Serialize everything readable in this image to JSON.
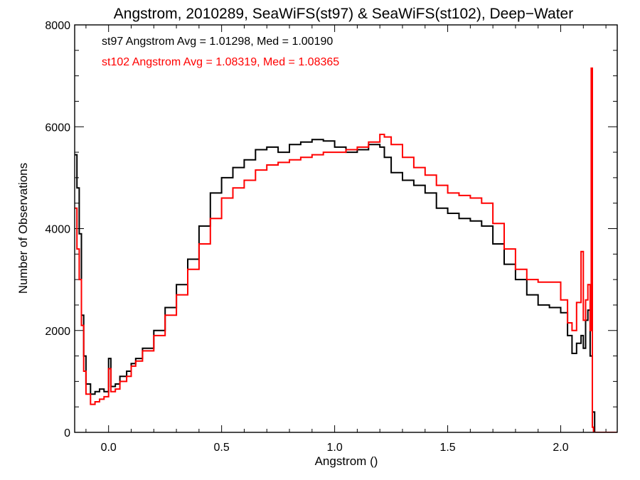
{
  "chart_data": {
    "type": "line",
    "title": "Angstrom, 2010289, SeaWiFS(st97) & SeaWiFS(st102), Deep−Water",
    "xlabel": "Angstrom ()",
    "ylabel": "Number of Observations",
    "xlim": [
      -0.15,
      2.25
    ],
    "ylim": [
      0,
      8000
    ],
    "x_ticks": [
      0.0,
      0.5,
      1.0,
      1.5,
      2.0
    ],
    "x_tick_labels": [
      "0.0",
      "0.5",
      "1.0",
      "1.5",
      "2.0"
    ],
    "y_ticks": [
      0,
      2000,
      4000,
      6000,
      8000
    ],
    "y_tick_labels": [
      "0",
      "2000",
      "4000",
      "6000",
      "8000"
    ],
    "grid": false,
    "legend": "none",
    "annotations": [
      {
        "text": "st97 Angstrom Avg = 1.01298, Med = 1.00190",
        "color": "#000000"
      },
      {
        "text": "st102 Angstrom Avg = 1.08319, Med = 1.08365",
        "color": "#ff0000"
      }
    ],
    "series": [
      {
        "color": "#000000",
        "x": [
          -0.15,
          -0.14,
          -0.13,
          -0.12,
          -0.11,
          -0.1,
          -0.08,
          -0.06,
          -0.04,
          -0.02,
          0.0,
          0.01,
          0.03,
          0.05,
          0.08,
          0.1,
          0.12,
          0.15,
          0.2,
          0.25,
          0.3,
          0.35,
          0.4,
          0.45,
          0.5,
          0.55,
          0.6,
          0.65,
          0.7,
          0.75,
          0.8,
          0.85,
          0.9,
          0.95,
          1.0,
          1.05,
          1.1,
          1.15,
          1.2,
          1.22,
          1.25,
          1.3,
          1.35,
          1.4,
          1.45,
          1.5,
          1.55,
          1.6,
          1.65,
          1.7,
          1.75,
          1.8,
          1.85,
          1.9,
          1.95,
          2.0,
          2.03,
          2.05,
          2.07,
          2.09,
          2.1,
          2.11,
          2.12,
          2.13,
          2.14,
          2.15
        ],
        "y": [
          5450,
          4800,
          3900,
          2300,
          1500,
          950,
          750,
          800,
          850,
          800,
          1450,
          900,
          950,
          1100,
          1200,
          1350,
          1450,
          1650,
          2000,
          2450,
          2900,
          3400,
          4050,
          4700,
          5000,
          5200,
          5350,
          5550,
          5600,
          5500,
          5650,
          5700,
          5750,
          5720,
          5600,
          5500,
          5550,
          5650,
          5600,
          5400,
          5100,
          4950,
          4850,
          4700,
          4400,
          4300,
          4200,
          4150,
          4050,
          3700,
          3300,
          3000,
          2700,
          2500,
          2450,
          2350,
          1900,
          1550,
          1750,
          1900,
          1650,
          2200,
          2400,
          1500,
          400,
          0
        ]
      },
      {
        "color": "#ff0000",
        "x": [
          -0.15,
          -0.14,
          -0.13,
          -0.12,
          -0.11,
          -0.1,
          -0.08,
          -0.06,
          -0.04,
          -0.02,
          0.0,
          0.01,
          0.03,
          0.05,
          0.08,
          0.1,
          0.12,
          0.15,
          0.2,
          0.25,
          0.3,
          0.35,
          0.4,
          0.45,
          0.5,
          0.55,
          0.6,
          0.65,
          0.7,
          0.75,
          0.8,
          0.85,
          0.9,
          0.95,
          1.0,
          1.05,
          1.1,
          1.15,
          1.2,
          1.22,
          1.25,
          1.3,
          1.35,
          1.4,
          1.45,
          1.5,
          1.55,
          1.6,
          1.65,
          1.7,
          1.75,
          1.8,
          1.85,
          1.9,
          1.95,
          2.0,
          2.03,
          2.05,
          2.07,
          2.09,
          2.1,
          2.11,
          2.12,
          2.13,
          2.135,
          2.14,
          2.145,
          2.15,
          2.2,
          2.25
        ],
        "y": [
          4400,
          3600,
          3000,
          2100,
          1200,
          750,
          550,
          600,
          650,
          700,
          1250,
          800,
          850,
          1000,
          1100,
          1300,
          1400,
          1600,
          1900,
          2300,
          2700,
          3200,
          3700,
          4200,
          4600,
          4800,
          4950,
          5150,
          5250,
          5300,
          5350,
          5400,
          5450,
          5500,
          5500,
          5550,
          5600,
          5700,
          5850,
          5800,
          5650,
          5400,
          5200,
          5050,
          4850,
          4700,
          4650,
          4600,
          4500,
          4100,
          3600,
          3200,
          3000,
          2950,
          2950,
          2600,
          2150,
          2000,
          2550,
          3550,
          2200,
          2600,
          2900,
          2000,
          7150,
          100,
          0,
          0,
          0,
          0
        ]
      }
    ]
  }
}
